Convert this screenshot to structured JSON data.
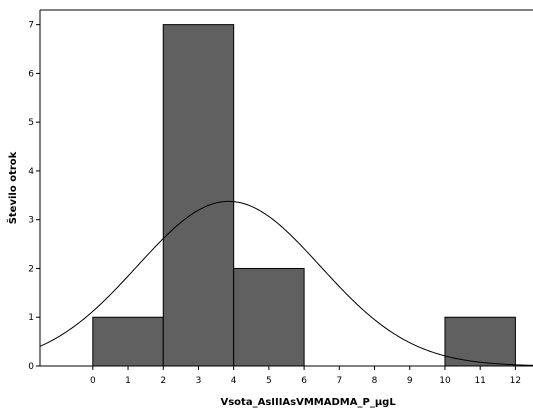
{
  "chart_data": {
    "type": "bar",
    "title": "",
    "xlabel": "Vsota_AsIIIAsVMMADMA_P_µgL",
    "ylabel": "Število otrok",
    "bins": [
      {
        "start": 0,
        "end": 2,
        "value": 1
      },
      {
        "start": 2,
        "end": 4,
        "value": 7
      },
      {
        "start": 4,
        "end": 6,
        "value": 2
      },
      {
        "start": 6,
        "end": 8,
        "value": 0
      },
      {
        "start": 8,
        "end": 10,
        "value": 0
      },
      {
        "start": 10,
        "end": 12,
        "value": 1
      }
    ],
    "xlim": [
      -1.5,
      12.5
    ],
    "ylim": [
      0,
      7.3
    ],
    "x_ticks": [
      "0",
      "1",
      "2",
      "3",
      "4",
      "5",
      "6",
      "7",
      "8",
      "9",
      "10",
      "11",
      "12"
    ],
    "y_ticks": [
      "0",
      "1",
      "2",
      "3",
      "4",
      "5",
      "6",
      "7"
    ],
    "normal_curve": {
      "mean": 3.86,
      "sd": 2.6,
      "n": 11,
      "bin_width": 2
    },
    "bar_color": "#606060",
    "bar_edge_color": "#000000",
    "curve_color": "#000000",
    "grid": false
  }
}
